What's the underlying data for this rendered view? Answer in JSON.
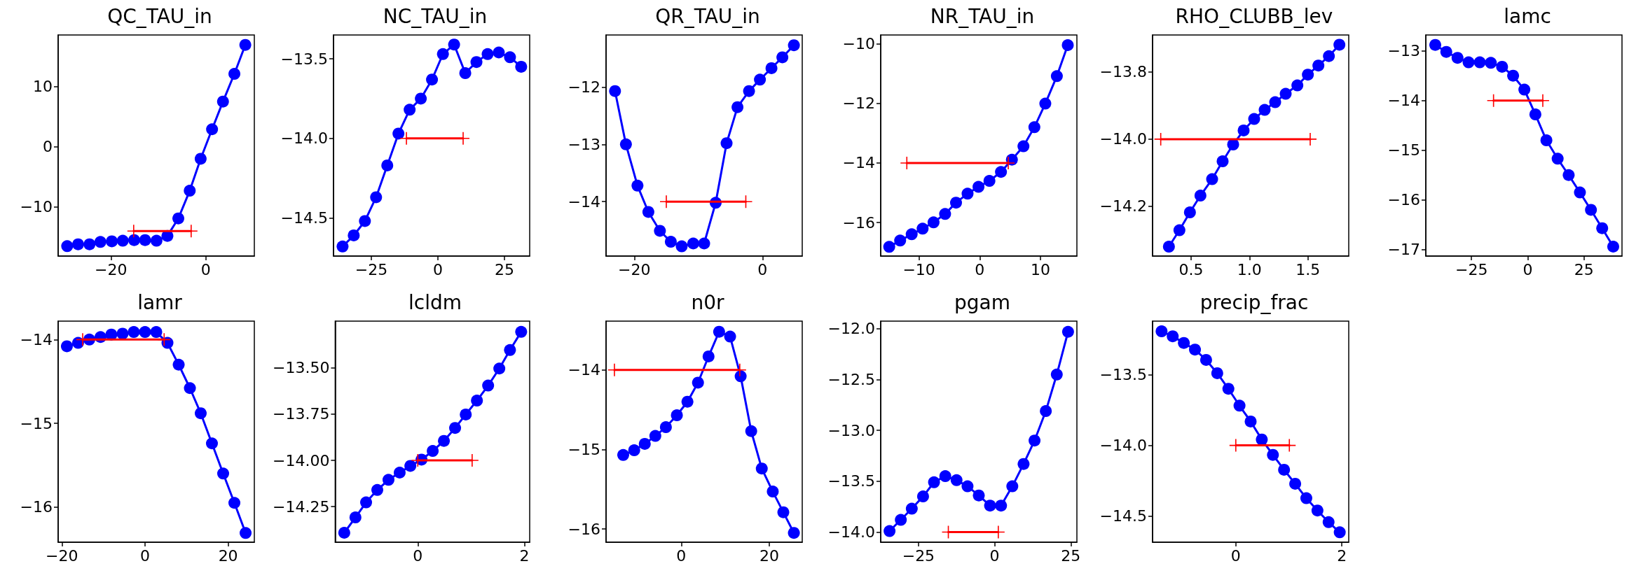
{
  "chart_data": [
    {
      "type": "line",
      "title": "QC_TAU_in",
      "xlim": [
        -31.1,
        10.2
      ],
      "xticks": [
        {
          "value": -20,
          "label": "−20"
        },
        0
      ],
      "ylim": [
        -18.15,
        18.55
      ],
      "yticks": [
        {
          "value": -10,
          "label": "−10"
        },
        0,
        10
      ],
      "grid": false,
      "series": [
        {
          "color": "#0000ff",
          "marker": "circle",
          "x": [
            -29.2,
            -26.9,
            -24.5,
            -22.2,
            -19.8,
            -17.5,
            -15.1,
            -12.8,
            -10.4,
            -8.1,
            -5.8,
            -3.4,
            -1.1,
            1.3,
            3.6,
            6.0,
            8.3
          ],
          "values": [
            -16.5,
            -16.2,
            -16.2,
            -15.8,
            -15.7,
            -15.6,
            -15.5,
            -15.5,
            -15.6,
            -14.8,
            -11.9,
            -7.3,
            -2.0,
            2.9,
            7.5,
            12.1,
            16.9
          ]
        },
        {
          "color": "#ff0000",
          "marker": "cross",
          "x": [
            -15.2,
            -3.1
          ],
          "values": [
            -14,
            -14
          ]
        }
      ]
    },
    {
      "type": "line",
      "title": "NC_TAU_in",
      "xlim": [
        -39.2,
        34.5
      ],
      "xticks": [
        {
          "value": -25,
          "label": "−25"
        },
        0,
        25
      ],
      "ylim": [
        -14.74,
        -13.35
      ],
      "yticks": [
        {
          "value": -13.5,
          "label": "−13.5"
        },
        {
          "value": -14,
          "label": "−14.0"
        },
        {
          "value": -14.5,
          "label": "−14.5"
        }
      ],
      "grid": false,
      "series": [
        {
          "color": "#0000ff",
          "marker": "circle",
          "x": [
            -35.8,
            -31.6,
            -27.4,
            -23.2,
            -19.0,
            -14.8,
            -10.6,
            -6.4,
            -2.2,
            1.9,
            6.1,
            10.3,
            14.5,
            18.7,
            22.9,
            27.1,
            31.3
          ],
          "values": [
            -14.68,
            -14.61,
            -14.52,
            -14.37,
            -14.17,
            -13.97,
            -13.82,
            -13.75,
            -13.63,
            -13.47,
            -13.41,
            -13.59,
            -13.52,
            -13.47,
            -13.46,
            -13.49,
            -13.55
          ]
        },
        {
          "color": "#ff0000",
          "marker": "cross",
          "x": [
            -11.8,
            9.5
          ],
          "values": [
            -14,
            -14
          ]
        }
      ]
    },
    {
      "type": "line",
      "title": "QR_TAU_in",
      "xlim": [
        -24.4,
        6.2
      ],
      "xticks": [
        {
          "value": -20,
          "label": "−20"
        },
        0
      ],
      "ylim": [
        -14.95,
        -11.09
      ],
      "yticks": [
        {
          "value": -12,
          "label": "−12"
        },
        {
          "value": -13,
          "label": "−13"
        },
        {
          "value": -14,
          "label": "−14"
        }
      ],
      "grid": false,
      "series": [
        {
          "color": "#0000ff",
          "marker": "circle",
          "x": [
            -23.0,
            -21.3,
            -19.5,
            -17.8,
            -16.0,
            -14.3,
            -12.6,
            -10.8,
            -9.1,
            -7.3,
            -5.6,
            -3.9,
            -2.1,
            -0.4,
            1.4,
            3.1,
            4.9
          ],
          "values": [
            -12.07,
            -13.0,
            -13.72,
            -14.18,
            -14.51,
            -14.7,
            -14.78,
            -14.73,
            -14.73,
            -14.02,
            -12.98,
            -12.35,
            -12.07,
            -11.87,
            -11.67,
            -11.48,
            -11.27
          ]
        },
        {
          "color": "#ff0000",
          "marker": "cross",
          "x": [
            -15.0,
            -2.6
          ],
          "values": [
            -14,
            -14
          ]
        }
      ]
    },
    {
      "type": "line",
      "title": "NR_TAU_in",
      "xlim": [
        -16.3,
        16.0
      ],
      "xticks": [
        {
          "value": -10,
          "label": "−10"
        },
        0,
        10
      ],
      "ylim": [
        -17.12,
        -9.71
      ],
      "yticks": [
        {
          "value": -10,
          "label": "−10"
        },
        {
          "value": -12,
          "label": "−12"
        },
        {
          "value": -14,
          "label": "−14"
        },
        {
          "value": -16,
          "label": "−16"
        }
      ],
      "grid": false,
      "series": [
        {
          "color": "#0000ff",
          "marker": "circle",
          "x": [
            -14.9,
            -13.1,
            -11.2,
            -9.4,
            -7.6,
            -5.7,
            -3.9,
            -2.0,
            -0.2,
            1.6,
            3.5,
            5.3,
            7.2,
            9.0,
            10.8,
            12.7,
            14.5
          ],
          "values": [
            -16.81,
            -16.6,
            -16.39,
            -16.2,
            -15.99,
            -15.71,
            -15.33,
            -15.03,
            -14.8,
            -14.6,
            -14.3,
            -13.89,
            -13.44,
            -12.8,
            -12.01,
            -11.09,
            -10.05
          ]
        },
        {
          "color": "#ff0000",
          "marker": "cross",
          "x": [
            -12.0,
            4.7
          ],
          "values": [
            -14,
            -14
          ]
        }
      ]
    },
    {
      "type": "line",
      "title": "RHO_CLUBB_lev",
      "xlim": [
        0.17,
        1.85
      ],
      "xticks": [
        0.5,
        {
          "value": 1,
          "label": "1.0"
        },
        1.5
      ],
      "ylim": [
        -14.348,
        -13.69
      ],
      "yticks": [
        {
          "value": -13.8,
          "label": "−13.8"
        },
        {
          "value": -14,
          "label": "−14.0"
        },
        {
          "value": -14.2,
          "label": "−14.2"
        }
      ],
      "grid": false,
      "series": [
        {
          "color": "#0000ff",
          "marker": "circle",
          "x": [
            0.31,
            0.4,
            0.49,
            0.58,
            0.68,
            0.77,
            0.86,
            0.95,
            1.04,
            1.13,
            1.22,
            1.31,
            1.41,
            1.5,
            1.59,
            1.68,
            1.77
          ],
          "values": [
            -14.32,
            -14.271,
            -14.218,
            -14.168,
            -14.119,
            -14.066,
            -14.016,
            -13.974,
            -13.94,
            -13.913,
            -13.89,
            -13.865,
            -13.84,
            -13.808,
            -13.781,
            -13.753,
            -13.719
          ]
        },
        {
          "color": "#ff0000",
          "marker": "cross",
          "x": [
            0.24,
            1.52
          ],
          "values": [
            -14,
            -14
          ]
        }
      ]
    },
    {
      "type": "line",
      "title": "lamc",
      "xlim": [
        -45.3,
        41.9
      ],
      "xticks": [
        {
          "value": -25,
          "label": "−25"
        },
        0,
        25
      ],
      "ylim": [
        -17.13,
        -12.68
      ],
      "yticks": [
        {
          "value": -13,
          "label": "−13"
        },
        {
          "value": -14,
          "label": "−14"
        },
        {
          "value": -15,
          "label": "−15"
        },
        {
          "value": -16,
          "label": "−16"
        },
        {
          "value": -17,
          "label": "−17"
        }
      ],
      "grid": false,
      "series": [
        {
          "color": "#0000ff",
          "marker": "circle",
          "x": [
            -41.1,
            -36.2,
            -31.2,
            -26.3,
            -21.3,
            -16.4,
            -11.4,
            -6.5,
            -1.5,
            3.4,
            8.3,
            13.3,
            18.2,
            23.2,
            28.1,
            33.1,
            38.0
          ],
          "values": [
            -12.88,
            -13.02,
            -13.14,
            -13.23,
            -13.23,
            -13.24,
            -13.32,
            -13.5,
            -13.78,
            -14.28,
            -14.8,
            -15.17,
            -15.5,
            -15.85,
            -16.2,
            -16.57,
            -16.94
          ]
        },
        {
          "color": "#ff0000",
          "marker": "cross",
          "x": [
            -15.2,
            6.7
          ],
          "values": [
            -14,
            -14
          ]
        }
      ]
    },
    {
      "type": "line",
      "title": "lamr",
      "xlim": [
        -20.9,
        26.3
      ],
      "xticks": [
        {
          "value": -20,
          "label": "−20"
        },
        0,
        20
      ],
      "ylim": [
        -16.42,
        -13.78
      ],
      "yticks": [
        {
          "value": -14,
          "label": "−14"
        },
        {
          "value": -15,
          "label": "−15"
        },
        {
          "value": -16,
          "label": "−16"
        }
      ],
      "grid": false,
      "series": [
        {
          "color": "#0000ff",
          "marker": "circle",
          "x": [
            -18.8,
            -16.1,
            -13.4,
            -10.7,
            -8.1,
            -5.4,
            -2.7,
            0.0,
            2.7,
            5.4,
            8.1,
            10.8,
            13.4,
            16.1,
            18.8,
            21.5,
            24.2
          ],
          "values": [
            -14.08,
            -14.04,
            -14.0,
            -13.97,
            -13.94,
            -13.93,
            -13.91,
            -13.91,
            -13.91,
            -14.04,
            -14.3,
            -14.58,
            -14.88,
            -15.24,
            -15.6,
            -15.95,
            -16.31
          ]
        },
        {
          "color": "#ff0000",
          "marker": "cross",
          "x": [
            -15.0,
            4.6
          ],
          "values": [
            -14,
            -14
          ]
        }
      ]
    },
    {
      "type": "line",
      "title": "lcldm",
      "xlim": [
        -1.55,
        2.1
      ],
      "xticks": [
        0,
        2
      ],
      "ylim": [
        -14.442,
        -13.248
      ],
      "yticks": [
        {
          "value": -13.5,
          "label": "−13.50"
        },
        {
          "value": -13.75,
          "label": "−13.75"
        },
        {
          "value": -14,
          "label": "−14.00"
        },
        {
          "value": -14.25,
          "label": "−14.25"
        }
      ],
      "grid": false,
      "series": [
        {
          "color": "#0000ff",
          "marker": "circle",
          "x": [
            -1.38,
            -1.17,
            -0.97,
            -0.76,
            -0.55,
            -0.34,
            -0.14,
            0.07,
            0.28,
            0.49,
            0.7,
            0.9,
            1.11,
            1.32,
            1.53,
            1.73,
            1.94
          ],
          "values": [
            -14.391,
            -14.308,
            -14.227,
            -14.16,
            -14.105,
            -14.066,
            -14.03,
            -13.996,
            -13.949,
            -13.895,
            -13.825,
            -13.752,
            -13.677,
            -13.596,
            -13.504,
            -13.404,
            -13.306
          ]
        },
        {
          "color": "#ff0000",
          "marker": "cross",
          "x": [
            0,
            1.02
          ],
          "values": [
            -14,
            -14
          ]
        }
      ]
    },
    {
      "type": "line",
      "title": "n0r",
      "xlim": [
        -17.1,
        27.5
      ],
      "xticks": [
        0,
        20
      ],
      "ylim": [
        -16.167,
        -13.386
      ],
      "yticks": [
        {
          "value": -14,
          "label": "−14"
        },
        {
          "value": -15,
          "label": "−15"
        },
        {
          "value": -16,
          "label": "−16"
        }
      ],
      "grid": false,
      "series": [
        {
          "color": "#0000ff",
          "marker": "circle",
          "x": [
            -13.2,
            -10.7,
            -8.3,
            -5.9,
            -3.5,
            -1.0,
            1.4,
            3.8,
            6.2,
            8.6,
            11.1,
            13.5,
            15.9,
            18.3,
            20.8,
            23.2,
            25.6
          ],
          "values": [
            -15.07,
            -15.01,
            -14.93,
            -14.83,
            -14.72,
            -14.57,
            -14.4,
            -14.16,
            -13.83,
            -13.52,
            -13.58,
            -14.08,
            -14.77,
            -15.24,
            -15.53,
            -15.79,
            -16.05
          ]
        },
        {
          "color": "#ff0000",
          "marker": "cross",
          "x": [
            -15.2,
            13.3
          ],
          "values": [
            -14,
            -14
          ]
        }
      ]
    },
    {
      "type": "line",
      "title": "pgam",
      "xlim": [
        -37.4,
        27.0
      ],
      "xticks": [
        {
          "value": -25,
          "label": "−25"
        },
        0,
        25
      ],
      "ylim": [
        -14.1,
        -11.925
      ],
      "yticks": [
        {
          "value": -12,
          "label": "−12.0"
        },
        {
          "value": -12.5,
          "label": "−12.5"
        },
        {
          "value": -13,
          "label": "−13.0"
        },
        {
          "value": -13.5,
          "label": "−13.5"
        },
        {
          "value": -14,
          "label": "−14.0"
        }
      ],
      "grid": false,
      "series": [
        {
          "color": "#0000ff",
          "marker": "circle",
          "x": [
            -34.5,
            -30.8,
            -27.2,
            -23.5,
            -19.9,
            -16.2,
            -12.5,
            -8.9,
            -5.2,
            -1.5,
            2.1,
            5.8,
            9.5,
            13.1,
            16.8,
            20.4,
            24.1
          ],
          "values": [
            -13.99,
            -13.88,
            -13.77,
            -13.65,
            -13.51,
            -13.45,
            -13.49,
            -13.55,
            -13.64,
            -13.74,
            -13.74,
            -13.55,
            -13.33,
            -13.1,
            -12.81,
            -12.45,
            -12.03
          ]
        },
        {
          "color": "#ff0000",
          "marker": "cross",
          "x": [
            -15.2,
            1.2
          ],
          "values": [
            -14,
            -14
          ]
        }
      ]
    },
    {
      "type": "line",
      "title": "precip_frac",
      "xlim": [
        -1.57,
        2.13
      ],
      "xticks": [
        0,
        2
      ],
      "ylim": [
        -14.684,
        -13.122
      ],
      "yticks": [
        {
          "value": -13.5,
          "label": "−13.5"
        },
        {
          "value": -14,
          "label": "−14.0"
        },
        {
          "value": -14.5,
          "label": "−14.5"
        }
      ],
      "grid": false,
      "series": [
        {
          "color": "#0000ff",
          "marker": "circle",
          "x": [
            -1.4,
            -1.19,
            -0.98,
            -0.77,
            -0.56,
            -0.35,
            -0.14,
            0.07,
            0.28,
            0.49,
            0.7,
            0.91,
            1.12,
            1.33,
            1.54,
            1.75,
            1.96
          ],
          "values": [
            -13.194,
            -13.229,
            -13.276,
            -13.323,
            -13.396,
            -13.49,
            -13.6,
            -13.719,
            -13.831,
            -13.958,
            -14.067,
            -14.172,
            -14.271,
            -14.373,
            -14.46,
            -14.542,
            -14.614
          ]
        },
        {
          "color": "#ff0000",
          "marker": "cross",
          "x": [
            0,
            1.01
          ],
          "values": [
            -14,
            -14
          ]
        }
      ]
    }
  ]
}
